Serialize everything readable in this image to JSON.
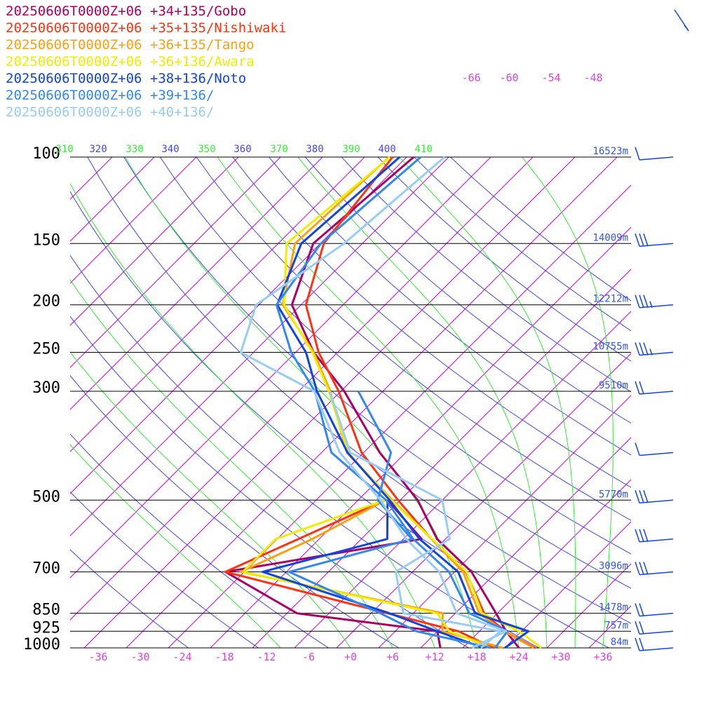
{
  "colors": {
    "isotherm": "#d400d4",
    "dry_adiabat": "#4444ee",
    "moist_adiabat": "#33ee33",
    "isobar": "#000000",
    "height_label": "#3355ee",
    "temp_label": "#dd44dd",
    "wind_barb": "#1144ee"
  },
  "legend": [
    {
      "label": "20250606T0000Z+06 +34+135/Gobo",
      "color": "#aa0066"
    },
    {
      "label": "20250606T0000Z+06 +35+135/Nishiwaki",
      "color": "#ff3311"
    },
    {
      "label": "20250606T0000Z+06 +36+135/Tango",
      "color": "#ffa011"
    },
    {
      "label": "20250606T0000Z+06 +36+136/Awara",
      "color": "#eeee00"
    },
    {
      "label": "20250606T0000Z+06 +38+136/Noto",
      "color": "#1144dd"
    },
    {
      "label": "20250606T0000Z+06 +39+136/",
      "color": "#3388ee"
    },
    {
      "label": "20250606T0000Z+06 +40+136/",
      "color": "#99ccf4"
    }
  ],
  "chart_data": {
    "type": "skew-t",
    "pressure_levels": [
      100,
      150,
      200,
      250,
      300,
      500,
      700,
      850,
      925,
      1000
    ],
    "pressure_labels": [
      "100",
      "150",
      "200",
      "250",
      "300",
      "500",
      "700",
      "850",
      "925",
      "1000"
    ],
    "height_labels": [
      "16523m",
      "14009m",
      "12212m",
      "10755m",
      "9510m",
      "5770m",
      "3096m",
      "1478m",
      "757m",
      "84m"
    ],
    "temperature_ticks": [
      -36,
      -30,
      -24,
      -18,
      -12,
      -6,
      0,
      6,
      12,
      18,
      24,
      30,
      36
    ],
    "temperature_tick_labels": [
      "-36",
      "-30",
      "-24",
      "-18",
      "-12",
      "-6",
      "+0",
      "+6",
      "+12",
      "+18",
      "+24",
      "+30",
      "+36"
    ],
    "upper_temperature_labels": [
      "-66",
      "-60",
      "-54",
      "-48"
    ],
    "theta_labels": [
      "310",
      "320",
      "330",
      "340",
      "350",
      "360",
      "370",
      "380",
      "390",
      "400",
      "410"
    ],
    "temperature_range": [
      -40,
      40
    ],
    "pressure_range": [
      1000,
      100
    ],
    "series": [
      {
        "name": "20250606T0000Z+06 +34+135/Gobo",
        "temperature": [
          [
            1000,
            24
          ],
          [
            925,
            19.8
          ],
          [
            850,
            15.8
          ],
          [
            700,
            6.4
          ],
          [
            600,
            -3.2
          ],
          [
            500,
            -11.5
          ],
          [
            400,
            -23.7
          ],
          [
            300,
            -37.5
          ],
          [
            250,
            -47.4
          ],
          [
            200,
            -57.3
          ],
          [
            150,
            -63
          ],
          [
            100,
            -61
          ]
        ],
        "dewpoint": [
          [
            1000,
            12.8
          ],
          [
            925,
            10
          ],
          [
            850,
            -12.6
          ],
          [
            700,
            -28.7
          ],
          [
            600,
            -5.4
          ],
          [
            500,
            -15.8
          ]
        ]
      },
      {
        "name": "20250606T0000Z+06 +35+135/Nishiwaki",
        "temperature": [
          [
            1000,
            26.3
          ],
          [
            925,
            19.6
          ],
          [
            850,
            14.1
          ],
          [
            700,
            5.6
          ],
          [
            600,
            -4
          ],
          [
            500,
            -14.3
          ],
          [
            400,
            -26.3
          ],
          [
            300,
            -38.3
          ],
          [
            250,
            -46.7
          ],
          [
            200,
            -55.3
          ],
          [
            150,
            -61.5
          ],
          [
            100,
            -64
          ]
        ],
        "dewpoint": [
          [
            1000,
            20.4
          ],
          [
            925,
            13
          ],
          [
            850,
            0.3
          ],
          [
            700,
            -28.7
          ],
          [
            500,
            -16.2
          ]
        ]
      },
      {
        "name": "20250606T0000Z+06 +36+135/Tango",
        "temperature": [
          [
            1000,
            26.1
          ],
          [
            925,
            19.5
          ],
          [
            850,
            13.4
          ],
          [
            700,
            5.2
          ],
          [
            600,
            -4
          ],
          [
            500,
            -15.1
          ],
          [
            400,
            -28.4
          ],
          [
            300,
            -39.5
          ],
          [
            250,
            -47.4
          ],
          [
            200,
            -58.6
          ],
          [
            150,
            -65.6
          ],
          [
            100,
            -64.5
          ]
        ],
        "dewpoint": [
          [
            1000,
            21.7
          ],
          [
            925,
            10.7
          ],
          [
            850,
            8.2
          ],
          [
            700,
            -26.5
          ],
          [
            600,
            -21
          ],
          [
            500,
            -16.1
          ]
        ]
      },
      {
        "name": "20250606T0000Z+06 +36+136/Awara",
        "temperature": [
          [
            1000,
            27.2
          ],
          [
            925,
            21.7
          ],
          [
            850,
            13.8
          ],
          [
            700,
            5.7
          ],
          [
            600,
            -3.9
          ],
          [
            500,
            -15.3
          ],
          [
            400,
            -28.2
          ],
          [
            300,
            -39.7
          ],
          [
            250,
            -47.6
          ],
          [
            200,
            -58.4
          ],
          [
            150,
            -66.8
          ],
          [
            100,
            -64.4
          ]
        ],
        "dewpoint": [
          [
            1000,
            20
          ],
          [
            925,
            11.7
          ],
          [
            850,
            7.4
          ],
          [
            700,
            -26.2
          ],
          [
            600,
            -26.2
          ],
          [
            500,
            -16.2
          ]
        ]
      },
      {
        "name": "20250606T0000Z+06 +38+136/Noto",
        "temperature": [
          [
            1000,
            22
          ],
          [
            925,
            23
          ],
          [
            850,
            12.8
          ],
          [
            700,
            4.5
          ],
          [
            600,
            -5.7
          ],
          [
            500,
            -15.5
          ],
          [
            400,
            -28.3
          ],
          [
            300,
            -41.4
          ],
          [
            250,
            -48.5
          ],
          [
            200,
            -59.4
          ],
          [
            150,
            -64.7
          ],
          [
            100,
            -63
          ]
        ],
        "dewpoint": [
          [
            1000,
            19
          ],
          [
            925,
            10
          ],
          [
            850,
            0.6
          ],
          [
            700,
            -23.4
          ],
          [
            600,
            -10.3
          ],
          [
            500,
            -15.8
          ]
        ]
      },
      {
        "name": "20250606T0000Z+06 +39+136/",
        "temperature": [
          [
            1000,
            20.6
          ],
          [
            925,
            20
          ],
          [
            850,
            12
          ],
          [
            700,
            3.2
          ],
          [
            600,
            -6.6
          ],
          [
            500,
            -16
          ],
          [
            400,
            -30.6
          ],
          [
            300,
            -41.7
          ],
          [
            250,
            -50.6
          ],
          [
            200,
            -59.5
          ],
          [
            150,
            -61.9
          ],
          [
            100,
            -60
          ]
        ],
        "dewpoint": [
          [
            1000,
            20
          ],
          [
            925,
            7
          ],
          [
            850,
            -0.7
          ],
          [
            700,
            -19.6
          ],
          [
            600,
            -6.8
          ],
          [
            500,
            -17.2
          ],
          [
            400,
            -22.1
          ],
          [
            300,
            -35.5
          ]
        ]
      },
      {
        "name": "20250606T0000Z+06 +40+136/",
        "temperature": [
          [
            1000,
            17.3
          ],
          [
            925,
            19.8
          ],
          [
            850,
            10.2
          ],
          [
            700,
            1.8
          ],
          [
            600,
            -7.6
          ],
          [
            500,
            -16.8
          ],
          [
            400,
            -29.4
          ],
          [
            300,
            -41.8
          ],
          [
            250,
            -57.8
          ],
          [
            200,
            -62.4
          ],
          [
            150,
            -58.6
          ],
          [
            100,
            -56.6
          ]
        ],
        "dewpoint": [
          [
            1000,
            18.6
          ],
          [
            925,
            19
          ],
          [
            850,
            2.6
          ],
          [
            700,
            -4.4
          ],
          [
            600,
            -1.4
          ],
          [
            500,
            -8
          ],
          [
            400,
            -27.9
          ],
          [
            300,
            -39.6
          ]
        ]
      }
    ],
    "wind_barbs_right": [
      {
        "pressure": 100,
        "barb": "pennant-only-short"
      },
      {
        "pressure": 150,
        "barb": "three-full"
      },
      {
        "pressure": 200,
        "barb": "three-full-one-half"
      },
      {
        "pressure": 250,
        "barb": "three-full-one-half"
      },
      {
        "pressure": 300,
        "barb": "two-full"
      },
      {
        "pressure": 400,
        "barb": "one-full"
      },
      {
        "pressure": 500,
        "barb": "three-full"
      },
      {
        "pressure": 600,
        "barb": "three-full"
      },
      {
        "pressure": 700,
        "barb": "three-full"
      },
      {
        "pressure": 850,
        "barb": "two-full"
      },
      {
        "pressure": 925,
        "barb": "two-full"
      },
      {
        "pressure": 1000,
        "barb": "two-full"
      }
    ]
  }
}
